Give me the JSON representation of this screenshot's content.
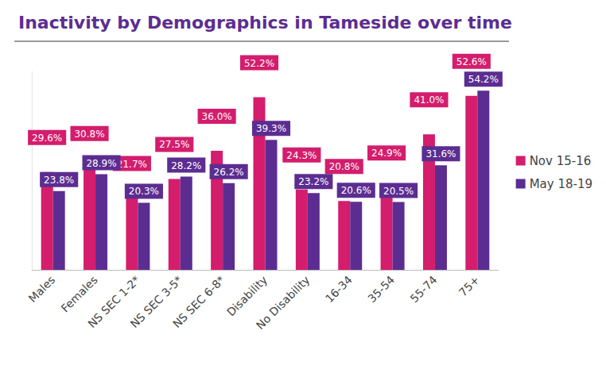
{
  "chart_data": {
    "type": "bar",
    "title": "Inactivity by Demographics in Tameside over time",
    "categories": [
      "Males",
      "Females",
      "NS SEC 1-2*",
      "NS SEC 3-5*",
      "NS SEC 6-8*",
      "Disability",
      "No Disability",
      "16-34",
      "35-54",
      "55-74",
      "75+"
    ],
    "series": [
      {
        "name": "Nov 15-16",
        "color": "#d41d6c",
        "values": [
          29.6,
          30.8,
          21.7,
          27.5,
          36.0,
          52.2,
          24.3,
          20.8,
          24.9,
          41.0,
          52.6
        ],
        "value_labels": [
          "29.6%",
          "30.8%",
          "21.7%",
          "27.5%",
          "36.0%",
          "52.2%",
          "24.3%",
          "20.8%",
          "24.9%",
          "41.0%",
          "52.6%"
        ]
      },
      {
        "name": "May 18-19",
        "color": "#5c2d91",
        "values": [
          23.8,
          28.9,
          20.3,
          28.2,
          26.2,
          39.3,
          23.2,
          20.6,
          20.5,
          31.6,
          54.2
        ],
        "value_labels": [
          "23.8%",
          "28.9%",
          "20.3%",
          "28.2%",
          "26.2%",
          "39.3%",
          "23.2%",
          "20.6%",
          "20.5%",
          "31.6%",
          "54.2%"
        ]
      }
    ],
    "ylim": [
      0,
      60
    ],
    "grid": false,
    "legend": "right",
    "data_labels": true,
    "tick_labels": "x"
  }
}
